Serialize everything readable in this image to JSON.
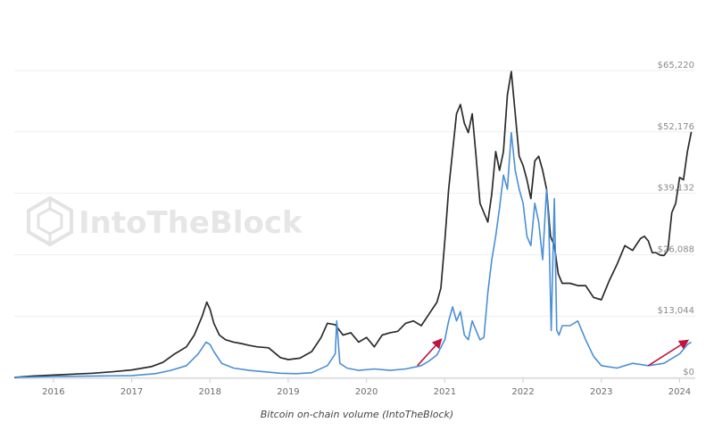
{
  "caption": "Bitcoin on-chain volume (IntoTheBlock)",
  "watermark": "IntoTheBlock",
  "colors": {
    "price": "#2b2b2b",
    "volume": "#4a8fd6",
    "arrow": "#c0143c",
    "grid": "#eeeeee"
  },
  "chart_data": {
    "type": "line",
    "x_ticks": [
      "2016",
      "2017",
      "2018",
      "2019",
      "2020",
      "2021",
      "2022",
      "2023",
      "2024"
    ],
    "y_ticks": [
      "$65,220",
      "$52,176",
      "$39,132",
      "$26,088",
      "$13,044",
      "$0"
    ],
    "ylim": [
      0,
      65220
    ],
    "xlim": [
      2015.5,
      2024.2
    ],
    "grid": true,
    "series": [
      {
        "x": [
          2015.5,
          2015.75,
          2016.0,
          2016.25,
          2016.5,
          2016.75,
          2017.0,
          2017.25,
          2017.4,
          2017.55,
          2017.7,
          2017.8,
          2017.9,
          2017.96,
          2018.0,
          2018.05,
          2018.12,
          2018.2,
          2018.3,
          2018.4,
          2018.5,
          2018.6,
          2018.75,
          2018.9,
          2019.0,
          2019.15,
          2019.3,
          2019.42,
          2019.5,
          2019.6,
          2019.7,
          2019.8,
          2019.9,
          2020.0,
          2020.1,
          2020.2,
          2020.3,
          2020.4,
          2020.5,
          2020.6,
          2020.7,
          2020.8,
          2020.9,
          2020.95,
          2021.0,
          2021.05,
          2021.1,
          2021.15,
          2021.2,
          2021.25,
          2021.3,
          2021.35,
          2021.4,
          2021.45,
          2021.5,
          2021.55,
          2021.6,
          2021.65,
          2021.7,
          2021.75,
          2021.8,
          2021.85,
          2021.9,
          2021.95,
          2022.0,
          2022.05,
          2022.1,
          2022.15,
          2022.2,
          2022.25,
          2022.3,
          2022.35,
          2022.4,
          2022.45,
          2022.5,
          2022.6,
          2022.7,
          2022.8,
          2022.9,
          2023.0,
          2023.1,
          2023.2,
          2023.3,
          2023.4,
          2023.5,
          2023.55,
          2023.6,
          2023.65,
          2023.7,
          2023.75,
          2023.8,
          2023.85,
          2023.9,
          2023.95,
          2024.0,
          2024.05,
          2024.1,
          2024.15
        ],
        "y": [
          0,
          300,
          500,
          700,
          900,
          1200,
          1600,
          2300,
          3200,
          5000,
          6500,
          9000,
          13000,
          16000,
          14500,
          11500,
          9000,
          8000,
          7500,
          7200,
          6800,
          6500,
          6300,
          4200,
          3800,
          4100,
          5500,
          8500,
          11500,
          11200,
          9000,
          9500,
          7500,
          8500,
          6500,
          9000,
          9500,
          9800,
          11500,
          12000,
          11000,
          13500,
          16000,
          19000,
          29000,
          40000,
          48000,
          56000,
          58000,
          54000,
          52000,
          56000,
          47000,
          37000,
          35000,
          33000,
          39000,
          48000,
          44000,
          48000,
          60000,
          65000,
          56000,
          47000,
          45000,
          42000,
          38000,
          46000,
          47000,
          44000,
          40000,
          30000,
          28000,
          22000,
          20000,
          20000,
          19500,
          19500,
          17000,
          16500,
          20500,
          24000,
          28000,
          27000,
          29500,
          30000,
          29000,
          26500,
          26500,
          26000,
          25900,
          27000,
          35000,
          37000,
          42500,
          42000,
          48000,
          52176
        ],
        "color": "#2b2b2b"
      },
      {
        "x": [
          2015.5,
          2016.0,
          2016.5,
          2017.0,
          2017.3,
          2017.5,
          2017.7,
          2017.85,
          2017.95,
          2018.0,
          2018.05,
          2018.15,
          2018.3,
          2018.5,
          2018.7,
          2018.9,
          2019.1,
          2019.3,
          2019.5,
          2019.6,
          2019.62,
          2019.66,
          2019.75,
          2019.9,
          2020.1,
          2020.3,
          2020.5,
          2020.7,
          2020.8,
          2020.9,
          2021.0,
          2021.05,
          2021.1,
          2021.15,
          2021.2,
          2021.25,
          2021.3,
          2021.35,
          2021.4,
          2021.45,
          2021.5,
          2021.55,
          2021.6,
          2021.65,
          2021.7,
          2021.75,
          2021.8,
          2021.85,
          2021.9,
          2021.95,
          2022.0,
          2022.05,
          2022.1,
          2022.15,
          2022.2,
          2022.25,
          2022.3,
          2022.33,
          2022.36,
          2022.4,
          2022.43,
          2022.46,
          2022.5,
          2022.6,
          2022.7,
          2022.8,
          2022.9,
          2023.0,
          2023.2,
          2023.4,
          2023.6,
          2023.8,
          2024.0,
          2024.1,
          2024.15
        ],
        "y": [
          0,
          200,
          300,
          400,
          800,
          1500,
          2500,
          5000,
          7500,
          7000,
          5500,
          3000,
          2000,
          1500,
          1200,
          900,
          800,
          1000,
          2500,
          5000,
          12000,
          3000,
          2000,
          1500,
          1800,
          1500,
          1800,
          2500,
          3500,
          4800,
          8000,
          12000,
          15000,
          12000,
          14000,
          9000,
          8000,
          12000,
          10000,
          8000,
          8500,
          18000,
          25000,
          30000,
          36000,
          43000,
          40000,
          52000,
          44000,
          40000,
          37000,
          30000,
          28000,
          37000,
          33000,
          25000,
          40000,
          32000,
          10000,
          38000,
          10000,
          9000,
          11000,
          11000,
          12000,
          8000,
          4500,
          2500,
          2000,
          3000,
          2500,
          3000,
          5000,
          7000,
          7500
        ],
        "color": "#4a8fd6"
      }
    ],
    "annotations": [
      {
        "type": "arrow",
        "from": [
          2020.65,
          2500
        ],
        "to": [
          2020.95,
          8000
        ]
      },
      {
        "type": "arrow",
        "from": [
          2023.6,
          2500
        ],
        "to": [
          2024.1,
          7800
        ]
      }
    ]
  }
}
